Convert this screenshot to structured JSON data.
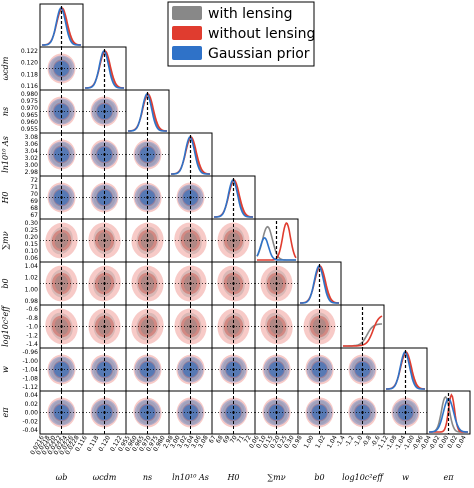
{
  "chart_data": {
    "type": "corner",
    "title": "",
    "legend": {
      "position": "top-right",
      "entries": [
        {
          "name": "with lensing",
          "color": "#888888"
        },
        {
          "name": "without lensing",
          "color": "#e03c2f"
        },
        {
          "name": "Gaussian prior",
          "color": "#2f72c8"
        }
      ]
    },
    "parameters": [
      {
        "key": "omega_b",
        "label": "ωb",
        "ticks": [
          "0.0216",
          "0.0218",
          "0.0220",
          "0.0222",
          "0.0224",
          "0.0226",
          "0.0228"
        ],
        "ticks_row": [],
        "fiducial": 0.0222,
        "range": [
          0.0214,
          0.023
        ]
      },
      {
        "key": "omega_cdm",
        "label": "ωcdm",
        "ticks": [
          "0.116",
          "0.118",
          "0.120",
          "0.122"
        ],
        "ticks_row": [
          "0.122",
          "0.120",
          "0.118",
          "0.116"
        ],
        "fiducial": 0.119,
        "range": [
          0.1152,
          0.1232
        ]
      },
      {
        "key": "n_s",
        "label": "ns",
        "ticks": [
          "0.955",
          "0.960",
          "0.965",
          "0.970",
          "0.975",
          "0.980"
        ],
        "ticks_row": [
          "0.980",
          "0.975",
          "0.970",
          "0.965",
          "0.960",
          "0.955"
        ],
        "fiducial": 0.967,
        "range": [
          0.952,
          0.983
        ]
      },
      {
        "key": "ln10A_s",
        "label": "ln10¹⁰ As",
        "ticks": [
          "2.98",
          "3.00",
          "3.02",
          "3.04",
          "3.06",
          "3.08"
        ],
        "ticks_row": [
          "3.08",
          "3.06",
          "3.04",
          "3.02",
          "3.00",
          "2.98"
        ],
        "fiducial": 3.04,
        "range": [
          2.97,
          3.09
        ]
      },
      {
        "key": "H0",
        "label": "H0",
        "ticks": [
          "67",
          "68",
          "69",
          "70",
          "71",
          "72"
        ],
        "ticks_row": [
          "72",
          "71",
          "70",
          "69",
          "68",
          "67"
        ],
        "fiducial": 69.5,
        "range": [
          66.5,
          72.5
        ]
      },
      {
        "key": "sum_mnu",
        "label": "∑mν",
        "ticks": [
          "0.06",
          "0.10",
          "0.15",
          "0.20",
          "0.25",
          "0.30"
        ],
        "ticks_row": [
          "0.30",
          "0.25",
          "0.20",
          "0.15",
          "0.10",
          "0.06"
        ],
        "fiducial": 0.06,
        "range": [
          0.0,
          0.36
        ]
      },
      {
        "key": "b0",
        "label": "b0",
        "ticks": [
          "0.98",
          "1.00",
          "1.02",
          "1.04"
        ],
        "ticks_row": [
          "1.04",
          "1.02",
          "1.00",
          "0.98"
        ],
        "fiducial": 1.0,
        "range": [
          0.96,
          1.06
        ]
      },
      {
        "key": "log10c2eff",
        "label": "log10c²eff",
        "ticks": [
          "-1.4",
          "-1.2",
          "-1.0",
          "-0.8",
          "-0.6"
        ],
        "ticks_row": [
          "-0.6",
          "-0.8",
          "-1.0",
          "-1.2",
          "-1.4"
        ],
        "fiducial": -0.6,
        "range": [
          -1.5,
          -0.5
        ]
      },
      {
        "key": "w",
        "label": "w",
        "ticks": [
          "-1.12",
          "-1.08",
          "-1.04",
          "-1.00",
          "-0.96"
        ],
        "ticks_row": [
          "-0.96",
          "-1.00",
          "-1.04",
          "-1.08",
          "-1.12"
        ],
        "fiducial": -1.04,
        "range": [
          -1.14,
          -0.94
        ]
      },
      {
        "key": "e_pi",
        "label": "eπ",
        "ticks": [
          "-0.04",
          "-0.02",
          "0.00",
          "0.02",
          "0.04"
        ],
        "ticks_row": [
          "0.04",
          "0.02",
          "0.00",
          "-0.02",
          "-0.04"
        ],
        "fiducial": 0.0,
        "range": [
          -0.05,
          0.05
        ]
      }
    ],
    "grid": false
  }
}
